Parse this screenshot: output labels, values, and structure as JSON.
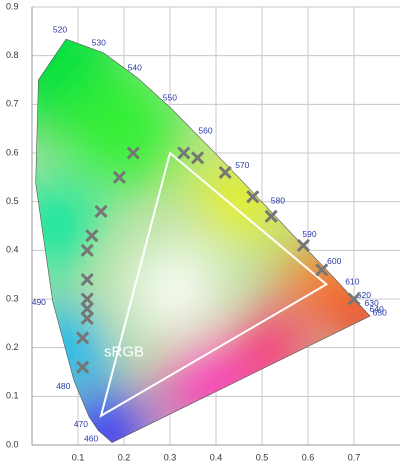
{
  "chart_data": {
    "type": "scatter",
    "x": [
      0.22,
      0.33,
      0.36,
      0.42,
      0.19,
      0.15,
      0.48,
      0.52,
      0.13,
      0.12,
      0.12,
      0.59,
      0.12,
      0.12,
      0.12,
      0.63,
      0.11,
      0.11,
      0.7
    ],
    "y": [
      0.6,
      0.6,
      0.59,
      0.56,
      0.55,
      0.48,
      0.51,
      0.47,
      0.43,
      0.4,
      0.34,
      0.41,
      0.3,
      0.28,
      0.26,
      0.36,
      0.22,
      0.16,
      0.3
    ],
    "color": "#767676",
    "xlim": [
      0,
      0.8
    ],
    "ylim": [
      0,
      0.9
    ],
    "xticks": [
      0.1,
      0.2,
      0.3,
      0.4,
      0.5,
      0.6,
      0.7
    ],
    "yticks": [
      {
        "value": 0,
        "label": "0.0"
      },
      0.1,
      0.2,
      0.3,
      0.4,
      0.5,
      0.6,
      0.7,
      0.8,
      0.9
    ],
    "grid": true,
    "gamut": {
      "name": "sRGB",
      "x": [
        0.64,
        0.3,
        0.15
      ],
      "y": [
        0.33,
        0.6,
        0.06
      ],
      "color": "#ffffff"
    },
    "locus": {
      "labels": [
        null,
        "460",
        "470",
        "480",
        "490",
        null,
        null,
        "520",
        "530",
        "540",
        "550",
        "560",
        "570",
        "580",
        "590",
        "600",
        "610",
        "620",
        "630",
        "640",
        "650",
        null
      ],
      "x": [
        0.174,
        0.144,
        0.124,
        0.091,
        0.045,
        0.008,
        0.014,
        0.074,
        0.155,
        0.23,
        0.302,
        0.373,
        0.444,
        0.512,
        0.575,
        0.627,
        0.666,
        0.691,
        0.708,
        0.719,
        0.726,
        0.735
      ],
      "y": [
        0.005,
        0.03,
        0.058,
        0.133,
        0.295,
        0.538,
        0.75,
        0.834,
        0.806,
        0.754,
        0.692,
        0.624,
        0.555,
        0.487,
        0.424,
        0.373,
        0.334,
        0.308,
        0.292,
        0.281,
        0.274,
        0.265
      ],
      "label_color": "#2a3aa8"
    }
  }
}
